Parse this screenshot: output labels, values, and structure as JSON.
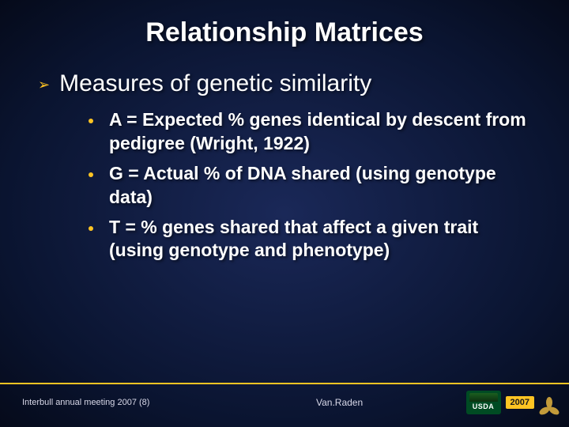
{
  "title": "Relationship Matrices",
  "main_bullet": {
    "text": "Measures of genetic similarity"
  },
  "sub_items": [
    {
      "text": "A = Expected % genes identical by descent from pedigree (Wright, 1922)"
    },
    {
      "text": "G = Actual % of DNA shared (using genotype data)"
    },
    {
      "text": "T = % genes shared that affect a given trait (using genotype and phenotype)"
    }
  ],
  "footer": {
    "left": "Interbull annual meeting 2007 (8)",
    "center": "Van.Raden",
    "usda": "USDA",
    "year": "2007"
  },
  "colors": {
    "accent": "#ffc423",
    "bg_inner": "#1a2858",
    "bg_outer": "#050a1a",
    "text": "#ffffff"
  }
}
